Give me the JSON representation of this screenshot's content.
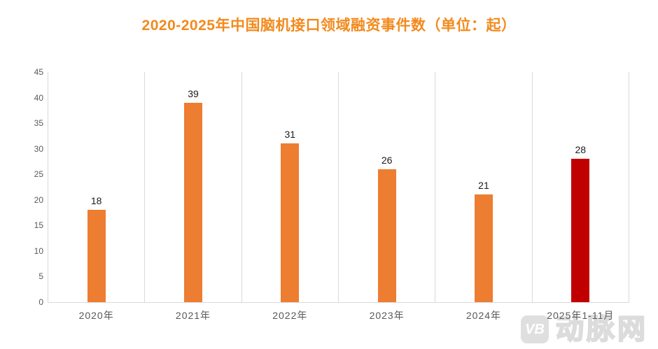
{
  "title": "2020-2025年中国脑机接口领域融资事件数（单位：起）",
  "watermark": {
    "logo": "VB",
    "name": "动脉网"
  },
  "colors": {
    "title": "#F28A1D",
    "bar": "#ED7D31",
    "highlight": "#C00000",
    "grid": "#D9D9D9",
    "tick_text": "#595959",
    "value_text": "#1A1A1A",
    "watermark": "#DCDCDC"
  },
  "chart_data": {
    "type": "bar",
    "title": "2020-2025年中国脑机接口领域融资事件数（单位：起）",
    "categories": [
      "2020年",
      "2021年",
      "2022年",
      "2023年",
      "2024年",
      "2025年1-11月"
    ],
    "values": [
      18,
      39,
      31,
      26,
      21,
      28
    ],
    "bar_colors": [
      "#ED7D31",
      "#ED7D31",
      "#ED7D31",
      "#ED7D31",
      "#ED7D31",
      "#C00000"
    ],
    "highlight_index": 5,
    "xlabel": "",
    "ylabel": "",
    "ylim": [
      0,
      45
    ],
    "yticks": [
      0,
      5,
      10,
      15,
      20,
      25,
      30,
      35,
      40,
      45
    ],
    "grid": "vertical-category-separators",
    "legend": "none"
  }
}
